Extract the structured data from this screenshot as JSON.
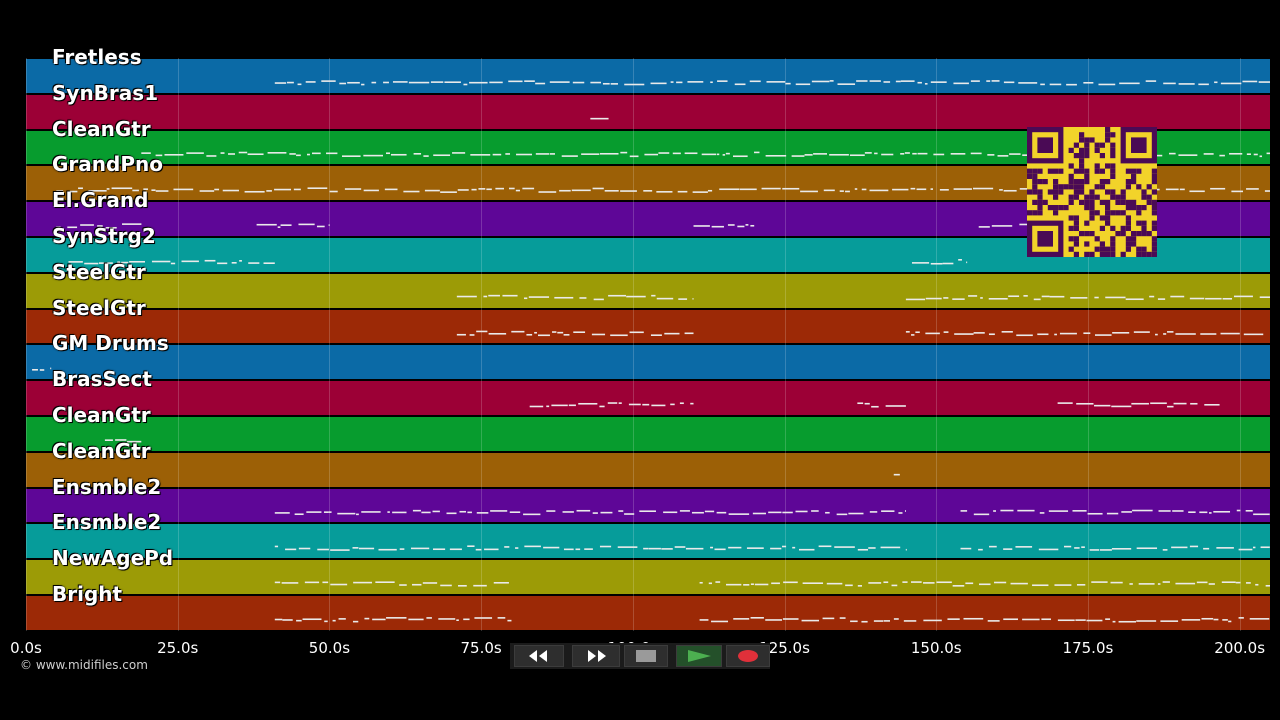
{
  "tracks": [
    {
      "name": "Fretless",
      "color": "#0b6aa6"
    },
    {
      "name": "SynBras1",
      "color": "#9c0036"
    },
    {
      "name": "CleanGtr",
      "color": "#079c2e"
    },
    {
      "name": "GrandPno",
      "color": "#9c6006"
    },
    {
      "name": "El.Grand",
      "color": "#5e0697"
    },
    {
      "name": "SynStrg2",
      "color": "#069c9a"
    },
    {
      "name": "SteelGtr",
      "color": "#9c9b06"
    },
    {
      "name": "SteelGtr",
      "color": "#9c2906"
    },
    {
      "name": "GM Drums",
      "color": "#0b6aa6"
    },
    {
      "name": "BrasSect",
      "color": "#9c0036"
    },
    {
      "name": "CleanGtr",
      "color": "#079c2e"
    },
    {
      "name": "CleanGtr",
      "color": "#9c6006"
    },
    {
      "name": "Ensmble2",
      "color": "#5e0697"
    },
    {
      "name": "Ensmble2",
      "color": "#069c9a"
    },
    {
      "name": "NewAgePd",
      "color": "#9c9b06"
    },
    {
      "name": "Bright",
      "color": "#9c2906"
    }
  ],
  "time_axis": {
    "ticks": [
      "0.0s",
      "25.0s",
      "50.0s",
      "75.0s",
      "100.0s",
      "125.0s",
      "150.0s",
      "175.0s",
      "200.0s"
    ],
    "max_seconds": 205
  },
  "watermark": "© www.midifiles.com",
  "transport": {
    "buttons": [
      {
        "name": "rewind-button",
        "icon": "rewind-icon"
      },
      {
        "name": "fast-forward-button",
        "icon": "fast-forward-icon"
      },
      {
        "name": "stop-button",
        "icon": "stop-icon"
      },
      {
        "name": "play-button",
        "icon": "play-icon"
      },
      {
        "name": "record-button",
        "icon": "record-icon"
      }
    ],
    "play_color": "#4caf50",
    "record_color": "#e0303a"
  },
  "qr_colors": {
    "background": "#f2d32a",
    "foreground": "#4a0a55"
  }
}
